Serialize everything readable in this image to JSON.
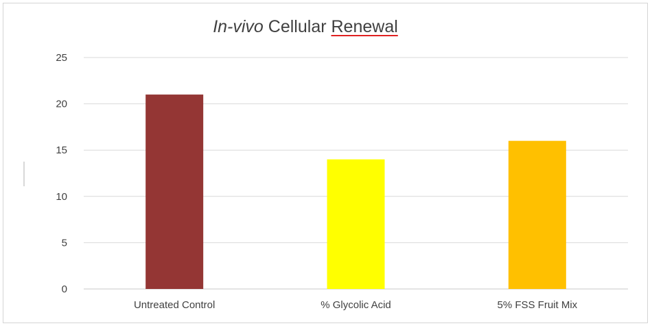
{
  "chart_data": {
    "type": "bar",
    "title_parts": [
      {
        "text": "In-vivo",
        "italic": true
      },
      {
        "text": " Cellular ",
        "italic": false
      },
      {
        "text": "Renewal",
        "italic": false,
        "spellcheck": true
      }
    ],
    "categories": [
      "Untreated Control",
      "% Glycolic Acid",
      "5% FSS Fruit Mix"
    ],
    "values": [
      21,
      14,
      16
    ],
    "colors": [
      "#943634",
      "#ffff00",
      "#ffc000"
    ],
    "ylim": [
      0,
      25
    ],
    "yticks": [
      "0",
      "5",
      "10",
      "15",
      "20",
      "25"
    ],
    "grid": true,
    "legend": "none"
  }
}
